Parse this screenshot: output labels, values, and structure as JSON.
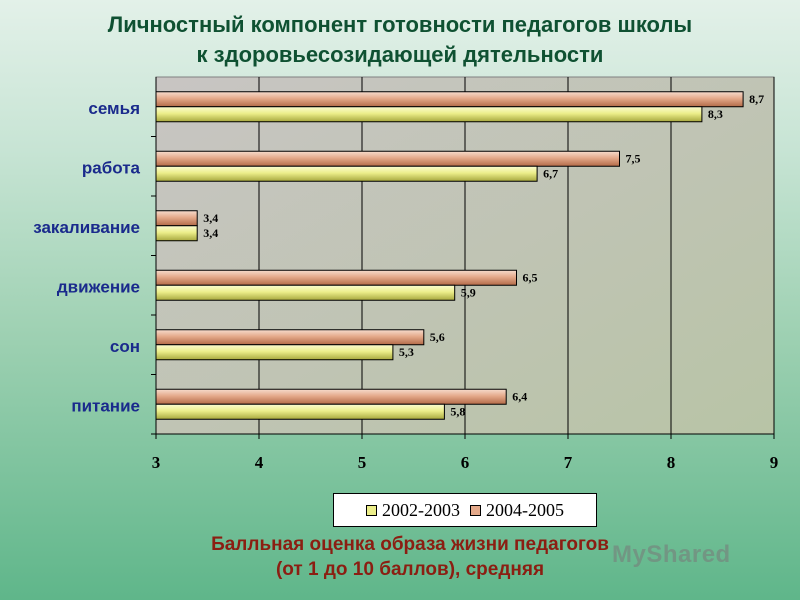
{
  "title": {
    "line1": "Личностный компонент готовности педагогов школы",
    "line2": "к здоровьесозидающей дятельности"
  },
  "caption": {
    "line1": "Балльная оценка образа жизни педагогов",
    "line2": "(от 1 до 10 баллов), средняя"
  },
  "watermark": "MyShared",
  "colors": {
    "series_2002_2003": "#ecee8a",
    "series_2004_2005": "#e4a98a",
    "plot_background": "#b8c4a6",
    "category_label": "#1a2a8c"
  },
  "chart_data": {
    "type": "bar",
    "orientation": "horizontal",
    "categories": [
      "семья",
      "работа",
      "закаливание",
      "движение",
      "сон",
      "питание"
    ],
    "series": [
      {
        "name": "2004-2005",
        "values": [
          8.7,
          7.5,
          3.4,
          6.5,
          5.6,
          6.4
        ],
        "labels": [
          "8,7",
          "7,5",
          "3,4",
          "6,5",
          "5,6",
          "6,4"
        ]
      },
      {
        "name": "2002-2003",
        "values": [
          8.3,
          6.7,
          3.4,
          5.9,
          5.3,
          5.8
        ],
        "labels": [
          "8,3",
          "6,7",
          "3,4",
          "5,9",
          "5,3",
          "5,8"
        ]
      }
    ],
    "legend": [
      "2002-2003",
      "2004-2005"
    ],
    "xlim": [
      3,
      9
    ],
    "xticks": [
      "3",
      "4",
      "5",
      "6",
      "7",
      "8",
      "9"
    ],
    "grid": true,
    "legend_position": "bottom"
  }
}
